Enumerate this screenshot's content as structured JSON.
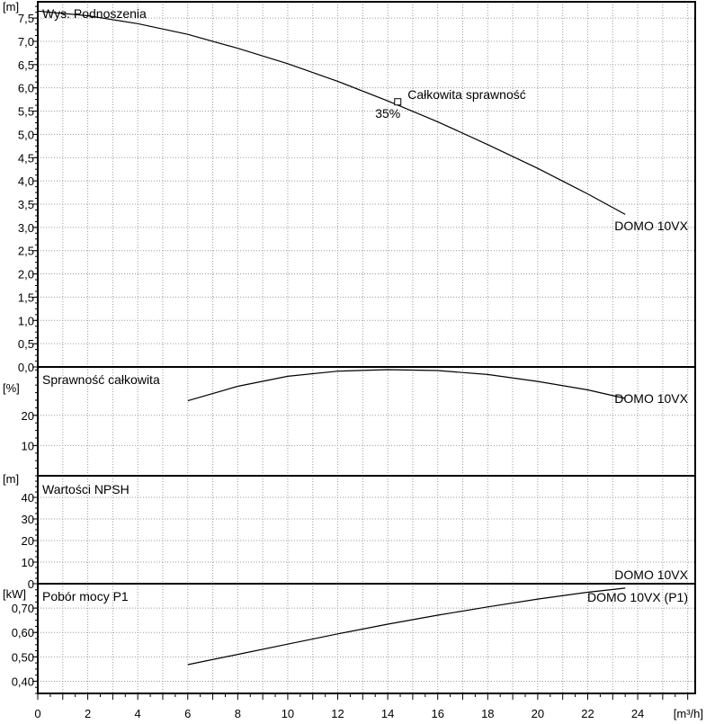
{
  "chart_data": {
    "type": "line",
    "x_axis": {
      "label": "[m³/h]",
      "range": [
        0,
        26.3
      ],
      "ticks": [
        "0",
        "2",
        "4",
        "6",
        "8",
        "10",
        "12",
        "14",
        "16",
        "18",
        "20",
        "22",
        "24"
      ]
    },
    "panels": [
      {
        "title": "Wys. Podnoszenia",
        "unit": "[m]",
        "ylim": [
          0,
          7.85
        ],
        "ticks": [
          "0,0",
          "0,5",
          "1,0",
          "1,5",
          "2,0",
          "2,5",
          "3,0",
          "3,5",
          "4,0",
          "4,5",
          "5,0",
          "5,5",
          "6,0",
          "6,5",
          "7,0",
          "7,5"
        ],
        "grid": true,
        "series": [
          {
            "name": "DOMO 10VX",
            "x": [
              0,
              2,
              4,
              6,
              8,
              10,
              12,
              14,
              16,
              18,
              20,
              22,
              23.5
            ],
            "y": [
              7.65,
              7.55,
              7.38,
              7.15,
              6.85,
              6.52,
              6.14,
              5.72,
              5.27,
              4.78,
              4.27,
              3.72,
              3.28
            ]
          }
        ],
        "annotations": [
          {
            "text": "Całkowita sprawność",
            "x": 14.4,
            "y": 5.7
          },
          {
            "text": "35%",
            "x": 14.4,
            "y": 5.7
          }
        ]
      },
      {
        "title": "Sprawność całkowita",
        "unit": "[%]",
        "ylim": [
          0,
          36
        ],
        "ticks": [
          "10",
          "20"
        ],
        "grid": true,
        "series": [
          {
            "name": "DOMO 10VX",
            "x": [
              6,
              8,
              10,
              12,
              14,
              16,
              18,
              20,
              22,
              23.5
            ],
            "y": [
              24.8,
              29.6,
              32.9,
              34.6,
              35.1,
              34.8,
              33.5,
              31.2,
              28.4,
              25.6
            ]
          }
        ]
      },
      {
        "title": "Wartości NPSH",
        "unit": "[m]",
        "ylim": [
          0,
          50
        ],
        "ticks": [
          "0",
          "10",
          "20",
          "30",
          "40"
        ],
        "grid": true,
        "series": [
          {
            "name": "DOMO 10VX",
            "x": [],
            "y": []
          }
        ]
      },
      {
        "title": "Pobór mocy P1",
        "unit": "[kW]",
        "ylim": [
          0.35,
          0.8
        ],
        "ticks": [
          "0,40",
          "0,50",
          "0,60",
          "0,70"
        ],
        "grid": true,
        "series": [
          {
            "name": "DOMO 10VX (P1)",
            "x": [
              6,
              8,
              10,
              12,
              14,
              16,
              18,
              20,
              22,
              23.5
            ],
            "y": [
              0.468,
              0.51,
              0.552,
              0.594,
              0.634,
              0.671,
              0.705,
              0.737,
              0.765,
              0.782
            ]
          }
        ]
      }
    ]
  }
}
